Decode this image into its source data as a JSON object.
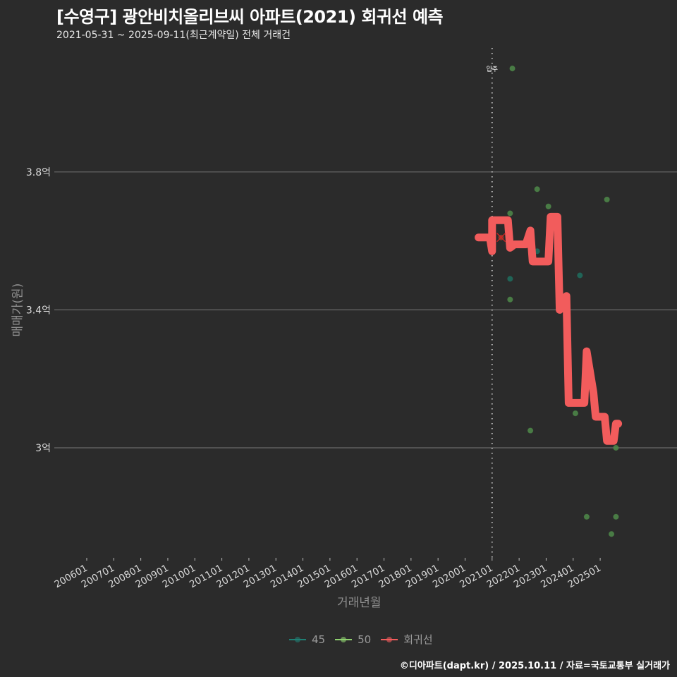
{
  "header": {
    "title": "[수영구] 광안비치올리브씨 아파트(2021) 회귀선 예측",
    "subtitle": "2021-05-31 ~ 2025-09-11(최근계약일) 전체 거래건"
  },
  "axes": {
    "ylabel": "매매가(원)",
    "xlabel": "거래년월",
    "yticks": [
      "3.8억",
      "3.4억",
      "3억"
    ],
    "xticks": [
      "200601",
      "200701",
      "200801",
      "200901",
      "201001",
      "201101",
      "201201",
      "201301",
      "201401",
      "201501",
      "201601",
      "201701",
      "201801",
      "201901",
      "202001",
      "202101",
      "202201",
      "202301",
      "202401",
      "202501"
    ]
  },
  "annotation": {
    "label": "입주",
    "x": "202101"
  },
  "legend": {
    "items": [
      {
        "label": "45",
        "color": "#1f7f74"
      },
      {
        "label": "50",
        "color": "#8fd16f"
      },
      {
        "label": "회귀선",
        "color": "#f25c5c"
      }
    ]
  },
  "caption": "©디아파트(dapt.kr) / 2025.10.11 / 자료=국토교통부 실거래가",
  "colors": {
    "background": "#2b2b2b",
    "grid": "#6a6a6a",
    "regression": "#f25c5c",
    "size45": "#1f6f5f",
    "size50": "#4f8a4a"
  },
  "chart_data": {
    "type": "scatter",
    "title": "[수영구] 광안비치올리브씨 아파트(2021) 회귀선 예측",
    "subtitle": "2021-05-31 ~ 2025-09-11(최근계약일) 전체 거래건",
    "xlabel": "거래년월",
    "ylabel": "매매가(원)",
    "ylim": [
      2.72,
      4.12
    ],
    "y_unit": "억",
    "xlim": [
      "200601",
      "202509"
    ],
    "grid": "horizontal",
    "legend_position": "bottom",
    "vline": {
      "x": "2021-01",
      "label": "입주"
    },
    "series": [
      {
        "name": "45",
        "type": "scatter",
        "points": [
          {
            "x": "2021-09",
            "y": 3.49
          },
          {
            "x": "2022-09",
            "y": 3.57
          },
          {
            "x": "2024-04",
            "y": 3.5
          }
        ]
      },
      {
        "name": "50",
        "type": "scatter",
        "points": [
          {
            "x": "2021-10",
            "y": 4.1
          },
          {
            "x": "2021-09",
            "y": 3.68
          },
          {
            "x": "2021-09",
            "y": 3.43
          },
          {
            "x": "2022-06",
            "y": 3.05
          },
          {
            "x": "2022-09",
            "y": 3.75
          },
          {
            "x": "2023-02",
            "y": 3.7
          },
          {
            "x": "2024-02",
            "y": 3.1
          },
          {
            "x": "2024-07",
            "y": 2.8
          },
          {
            "x": "2025-04",
            "y": 3.72
          },
          {
            "x": "2025-06",
            "y": 2.75
          },
          {
            "x": "2025-08",
            "y": 3.0
          },
          {
            "x": "2025-08",
            "y": 2.8
          }
        ]
      },
      {
        "name": "회귀선",
        "type": "line",
        "points": [
          {
            "x": "2020-07",
            "y": 3.61
          },
          {
            "x": "2020-12",
            "y": 3.61
          },
          {
            "x": "2021-01",
            "y": 3.57
          },
          {
            "x": "2021-01",
            "y": 3.66
          },
          {
            "x": "2021-08",
            "y": 3.66
          },
          {
            "x": "2021-09",
            "y": 3.58
          },
          {
            "x": "2021-11",
            "y": 3.59
          },
          {
            "x": "2022-04",
            "y": 3.59
          },
          {
            "x": "2022-06",
            "y": 3.63
          },
          {
            "x": "2022-07",
            "y": 3.54
          },
          {
            "x": "2023-02",
            "y": 3.54
          },
          {
            "x": "2023-03",
            "y": 3.67
          },
          {
            "x": "2023-06",
            "y": 3.67
          },
          {
            "x": "2023-07",
            "y": 3.4
          },
          {
            "x": "2023-10",
            "y": 3.44
          },
          {
            "x": "2023-11",
            "y": 3.13
          },
          {
            "x": "2024-06",
            "y": 3.13
          },
          {
            "x": "2024-07",
            "y": 3.28
          },
          {
            "x": "2024-10",
            "y": 3.16
          },
          {
            "x": "2024-11",
            "y": 3.09
          },
          {
            "x": "2025-03",
            "y": 3.09
          },
          {
            "x": "2025-04",
            "y": 3.02
          },
          {
            "x": "2025-07",
            "y": 3.02
          },
          {
            "x": "2025-08",
            "y": 3.07
          },
          {
            "x": "2025-09",
            "y": 3.07
          }
        ],
        "marker": {
          "x": "2021-05",
          "y": 3.61
        }
      }
    ]
  }
}
